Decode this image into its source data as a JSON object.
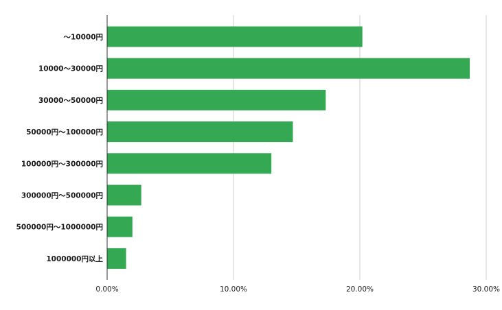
{
  "chart_data": {
    "type": "bar",
    "orientation": "horizontal",
    "categories": [
      "～10000円",
      "10000～30000円",
      "30000～50000円",
      "50000円～100000円",
      "100000円～300000円",
      "300000円～500000円",
      "500000円～1000000円",
      "1000000円以上"
    ],
    "values": [
      20.2,
      28.7,
      17.3,
      14.7,
      13.0,
      2.7,
      2.0,
      1.5
    ],
    "title": "",
    "xlabel": "",
    "ylabel": "",
    "xlim": [
      0,
      30
    ],
    "x_ticks": [
      0,
      10,
      20,
      30
    ],
    "x_tick_labels": [
      "0.00%",
      "10.00%",
      "20.00%",
      "30.00%"
    ],
    "grid": "vertical",
    "legend": "none",
    "bar_color": "#34a853",
    "grid_color": "#cccccc",
    "axis_color": "#333333"
  }
}
